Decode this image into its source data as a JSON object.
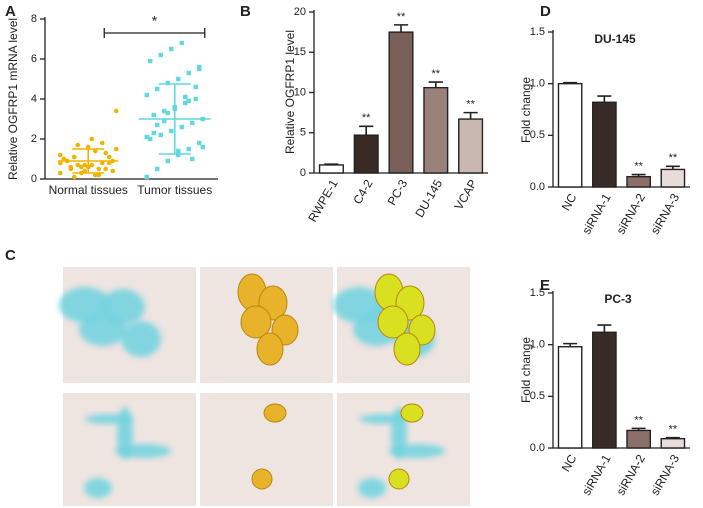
{
  "chart_data": [
    {
      "type": "strip",
      "panel": "A",
      "ylabel": "Relative OGFRP1 mRNA level",
      "categories": [
        "Normal tissues",
        "Tumor tissues"
      ],
      "ylim": [
        0,
        8
      ],
      "yticks": [
        0,
        2,
        4,
        6,
        8
      ],
      "significance": "*",
      "series": [
        {
          "color": "#f0b400",
          "mean": 0.9,
          "sd": 0.6,
          "values": [
            0.3,
            0.5,
            0.6,
            0.7,
            0.8,
            0.9,
            1.0,
            1.1,
            0.4,
            0.2,
            1.3,
            1.5,
            0.9,
            0.7,
            1.6,
            0.5,
            0.8,
            1.2,
            0.6,
            0.3,
            2.0,
            1.8,
            0.4,
            1.0,
            0.1,
            0.7,
            1.4,
            0.5,
            3.4,
            0.9,
            1.7,
            0.6,
            0.2,
            1.1,
            0.8
          ]
        },
        {
          "color": "#5fd8e0",
          "mean": 3.0,
          "sd": 1.75,
          "values": [
            0.1,
            0.5,
            0.9,
            1.2,
            1.5,
            1.8,
            2.0,
            2.2,
            2.4,
            2.6,
            2.8,
            3.0,
            3.2,
            3.4,
            3.6,
            3.8,
            4.0,
            4.2,
            4.5,
            4.8,
            5.0,
            5.3,
            5.6,
            5.9,
            6.2,
            6.5,
            6.8,
            1.0,
            1.6,
            2.3,
            2.9,
            3.5,
            4.1,
            4.6,
            2.1,
            2.7,
            3.3,
            1.4,
            3.9,
            5.5
          ]
        }
      ]
    },
    {
      "type": "bar",
      "panel": "B",
      "ylabel": "Relative OGFRP1 level",
      "categories": [
        "RWPE-1",
        "C4-2",
        "PC-3",
        "DU-145",
        "VCAP"
      ],
      "values": [
        1.0,
        4.7,
        17.5,
        10.6,
        6.7
      ],
      "errors": [
        0.1,
        1.1,
        0.9,
        0.7,
        0.8
      ],
      "colors": [
        "#ffffff",
        "#3a2a26",
        "#7a5f58",
        "#9a817a",
        "#c9b8b2"
      ],
      "annotations": [
        {
          "index": 1,
          "text": "**"
        },
        {
          "index": 2,
          "text": "**"
        },
        {
          "index": 3,
          "text": "**"
        },
        {
          "index": 4,
          "text": "**"
        }
      ],
      "ylim": [
        0,
        20
      ],
      "yticks": [
        0,
        5,
        10,
        15,
        20
      ]
    },
    {
      "type": "image",
      "panel": "C"
    },
    {
      "type": "bar",
      "panel": "D",
      "title": "DU-145",
      "ylabel": "Fold change",
      "categories": [
        "NC",
        "siRNA-1",
        "siRNA-2",
        "siRNA-3"
      ],
      "values": [
        1.0,
        0.82,
        0.1,
        0.17
      ],
      "errors": [
        0.01,
        0.06,
        0.02,
        0.03
      ],
      "colors": [
        "#ffffff",
        "#3a2a26",
        "#8c6f68",
        "#e8dcd8"
      ],
      "annotations": [
        {
          "index": 2,
          "text": "**"
        },
        {
          "index": 3,
          "text": "**"
        }
      ],
      "ylim": [
        0,
        1.5
      ],
      "yticks": [
        {
          "value": 0,
          "label": "0.0"
        },
        0.5,
        {
          "value": 1,
          "label": "1.0"
        },
        1.5
      ]
    },
    {
      "type": "bar",
      "panel": "E",
      "title": "PC-3",
      "ylabel": "Fold change",
      "categories": [
        "NC",
        "siRNA-1",
        "siRNA-2",
        "siRNA-3"
      ],
      "values": [
        0.98,
        1.12,
        0.17,
        0.09
      ],
      "errors": [
        0.03,
        0.07,
        0.02,
        0.01
      ],
      "colors": [
        "#ffffff",
        "#3a2a26",
        "#8c6f68",
        "#e8dcd8"
      ],
      "annotations": [
        {
          "index": 2,
          "text": "**"
        },
        {
          "index": 3,
          "text": "**"
        }
      ],
      "ylim": [
        0,
        1.5
      ],
      "yticks": [
        {
          "value": 0,
          "label": "0.0"
        },
        0.5,
        {
          "value": 1,
          "label": "1.0"
        },
        1.5
      ]
    }
  ]
}
